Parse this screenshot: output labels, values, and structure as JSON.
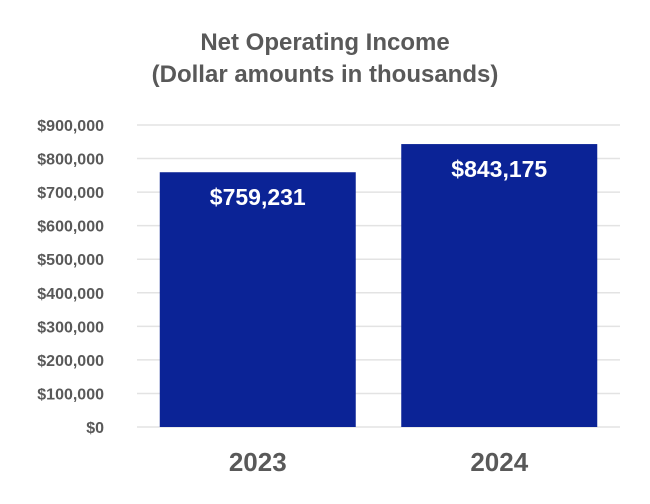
{
  "chart_data": {
    "type": "bar",
    "title_lines": [
      "Net Operating Income",
      "(Dollar amounts in thousands)"
    ],
    "categories": [
      "2023",
      "2024"
    ],
    "values": [
      759231,
      843175
    ],
    "data_labels": [
      "$759,231",
      "$843,175"
    ],
    "ytick_labels": [
      "$0",
      "$100,000",
      "$200,000",
      "$300,000",
      "$400,000",
      "$500,000",
      "$600,000",
      "$700,000",
      "$800,000",
      "$900,000"
    ],
    "ylim": [
      0,
      900000
    ],
    "ytick_step": 100000,
    "grid": true,
    "legend": "none",
    "bar_color": "#0b2396"
  }
}
